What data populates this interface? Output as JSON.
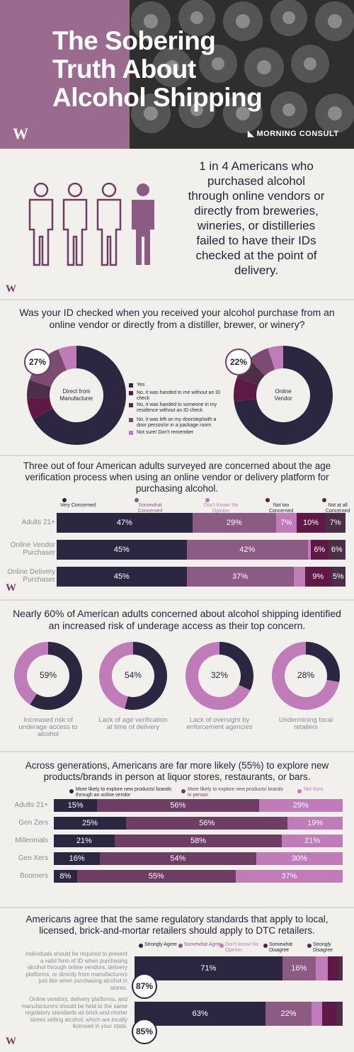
{
  "header": {
    "title_lines": [
      "The Sobering",
      "Truth About",
      "Alcohol Shipping"
    ],
    "brand": "MORNING CONSULT"
  },
  "stat": {
    "text": "1 in 4 Americans who purchased alcohol through online vendors or directly from breweries, wineries, or distilleries failed to have their IDs checked at the point of delivery."
  },
  "id_check": {
    "question": "Was your ID checked when you received your alcohol purchase from an online vendor or directly from a distiller, brewer, or winery?",
    "legend": [
      {
        "label": "Yes",
        "color": "#2c2640"
      },
      {
        "label": "No, it was handed to me without an ID check",
        "color": "#5e1a44"
      },
      {
        "label": "No, it was handed to someone in my residence without an ID check",
        "color": "#4a2f46"
      },
      {
        "label": "No, it was left on my doorstep/with a door person/or in a package room",
        "color": "#7d4a72"
      },
      {
        "label": "Not sure/ Don't remember",
        "color": "#c07cb8"
      }
    ]
  },
  "concern": {
    "title": "Three out of four American adults surveyed are concerned about the age verification process when using an online vendor or delivery platform for purchasing alcohol.",
    "legend": [
      "Very Concerned",
      "Somewhat Concerned",
      "Don't Know/ No Opinion",
      "Not too Concerned",
      "Not at all Concerned"
    ],
    "colors": [
      "#2c2640",
      "#8c5b83",
      "#c07cb8",
      "#5e1a44",
      "#4a2f46"
    ]
  },
  "top_concern": {
    "title": "Nearly 60% of American adults concerned about alcohol shipping identified an increased risk of underage access as their top concern."
  },
  "generations": {
    "title": "Across generations, Americans are far more likely (55%) to explore new products/brands in person at liquor stores, restaurants, or bars.",
    "legend": [
      "More likely to explore new products/ brands through an online vendor",
      "More likely to explore new products/ brands in person",
      "Not Sure"
    ],
    "colors": [
      "#2c2640",
      "#6e3d63",
      "#c07cb8"
    ]
  },
  "standards": {
    "title": "Americans agree that the same regulatory standards that apply to local, licensed, brick-and-mortar retailers should apply to DTC retailers.",
    "legend": [
      "Strongly Agree",
      "Somewhat Agree",
      "Don't know/ No Opinion",
      "Somewhat Disagree",
      "Strongly Disagree"
    ],
    "colors": [
      "#2c2640",
      "#8c5b83",
      "#c07cb8",
      "#5e1a44",
      "#4a2f46"
    ]
  },
  "chart_data": [
    {
      "type": "pie",
      "title": "Direct from Manufacturer",
      "callout": "27%",
      "categories": [
        "Yes",
        "No, it was handed to me without an ID check",
        "No, it was handed to someone in my residence without an ID check",
        "No, it was left on my doorstep/with a door person/or in a package room",
        "Not sure/ Don't remember"
      ],
      "values": [
        67,
        7,
        6,
        14,
        6
      ]
    },
    {
      "type": "pie",
      "title": "Online Vendor",
      "callout": "22%",
      "categories": [
        "Yes",
        "No, it was handed to me without an ID check",
        "No, it was handed to someone in my residence without an ID check",
        "No, it was left on my doorstep/with a door person/or in a package room",
        "Not sure/ Don't remember"
      ],
      "values": [
        73,
        8,
        7,
        7,
        5
      ]
    },
    {
      "type": "bar",
      "categories": [
        "Adults 21+",
        "Online Vendor Purchaser",
        "Online Delivery Purchaser"
      ],
      "series": [
        {
          "name": "Very Concerned",
          "values": [
            47,
            45,
            45
          ]
        },
        {
          "name": "Somewhat Concerned",
          "values": [
            29,
            42,
            37
          ]
        },
        {
          "name": "Don't Know/ No Opinion",
          "values": [
            7,
            1,
            4
          ]
        },
        {
          "name": "Not too Concerned",
          "values": [
            10,
            6,
            9
          ]
        },
        {
          "name": "Not at all Concerned",
          "values": [
            7,
            6,
            5
          ]
        }
      ],
      "labels_shown": [
        [
          "47%",
          "29%",
          "7%",
          "10%",
          "7%"
        ],
        [
          "45%",
          "42%",
          "",
          "6%",
          "6%"
        ],
        [
          "45%",
          "37%",
          "",
          "9%",
          "5%"
        ]
      ]
    },
    {
      "type": "pie",
      "items": [
        {
          "value": 59,
          "label": "59%",
          "caption": "Increased risk of underage access to alcohol"
        },
        {
          "value": 54,
          "label": "54%",
          "caption": "Lack of age verification at time of delivery"
        },
        {
          "value": 32,
          "label": "32%",
          "caption": "Lack of oversight by enforcement agencies"
        },
        {
          "value": 28,
          "label": "28%",
          "caption": "Undermining local retailers"
        }
      ]
    },
    {
      "type": "bar",
      "categories": [
        "Adults 21+",
        "Gen Zers",
        "Millennials",
        "Gen Xers",
        "Boomers"
      ],
      "series": [
        {
          "name": "More likely to explore new products/ brands through an online vendor",
          "values": [
            15,
            25,
            21,
            16,
            8
          ]
        },
        {
          "name": "More likely to explore new products/ brands in person",
          "values": [
            56,
            56,
            58,
            54,
            55
          ]
        },
        {
          "name": "Not Sure",
          "values": [
            29,
            19,
            21,
            30,
            37
          ]
        }
      ]
    },
    {
      "type": "bar",
      "categories": [
        "Individuals should be required to present a valid form of ID when purchasing alcohol through online vendors, delivery platforms, or directly from manufacturers just like when purchasing alcohol in stores.",
        "Online vendors, delivery platforms, and manufacturers should be held to the same regulatory standards as brick-and-mortar stores selling alcohol, which are locally licensed in your state."
      ],
      "totals": [
        "87%",
        "85%"
      ],
      "series": [
        {
          "name": "Strongly Agree",
          "values": [
            71,
            63
          ]
        },
        {
          "name": "Somewhat Agree",
          "values": [
            16,
            22
          ]
        },
        {
          "name": "Don't know/ No Opinion",
          "values": [
            6,
            5
          ]
        },
        {
          "name": "Somewhat Disagree",
          "values": [
            5,
            7
          ]
        },
        {
          "name": "Strongly Disagree",
          "values": [
            2,
            3
          ]
        }
      ]
    }
  ]
}
